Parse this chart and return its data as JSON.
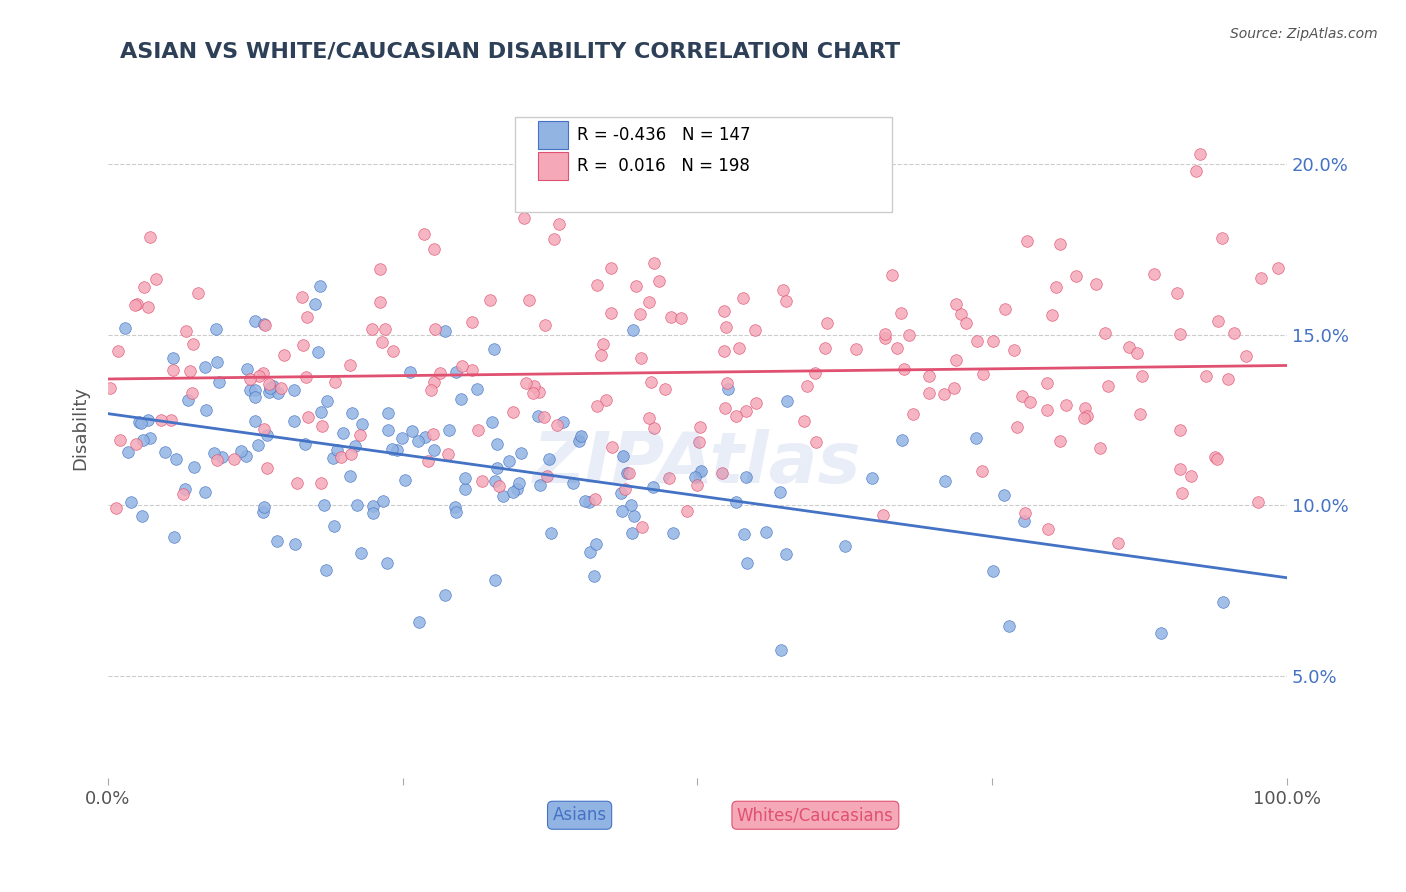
{
  "title": "ASIAN VS WHITE/CAUCASIAN DISABILITY CORRELATION CHART",
  "source": "Source: ZipAtlas.com",
  "ylabel": "Disability",
  "xlabel": "",
  "blue_R": -0.436,
  "blue_N": 147,
  "pink_R": 0.016,
  "pink_N": 198,
  "blue_color": "#92b4e3",
  "pink_color": "#f4a8b8",
  "blue_line_color": "#4472c4",
  "pink_line_color": "#e05070",
  "title_color": "#2e4057",
  "legend_R_color": "#e05070",
  "legend_N_color": "#4472c4",
  "watermark": "ZIPAtlas",
  "xlim": [
    0.0,
    1.0
  ],
  "ylim": [
    0.02,
    0.225
  ],
  "yticks": [
    0.05,
    0.1,
    0.15,
    0.2
  ],
  "ytick_labels": [
    "5.0%",
    "10.0%",
    "15.0%",
    "20.0%"
  ],
  "xticks": [
    0.0,
    0.25,
    0.5,
    0.75,
    1.0
  ],
  "xtick_labels": [
    "0.0%",
    "",
    "",
    "",
    "100.0%"
  ],
  "blue_seed": 42,
  "pink_seed": 7
}
